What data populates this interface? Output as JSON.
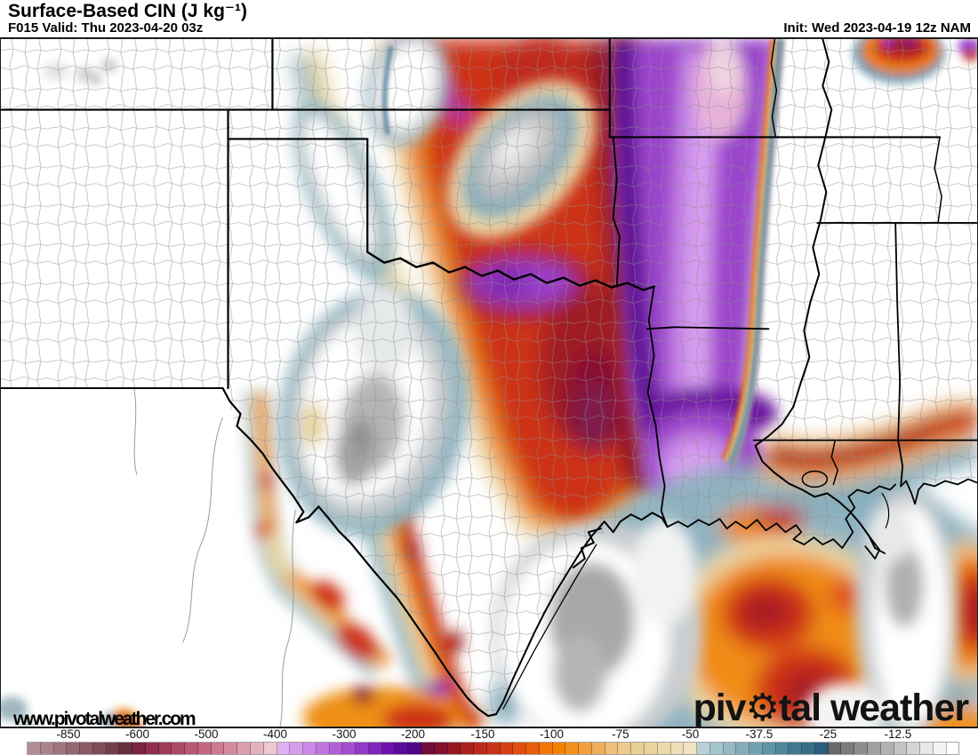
{
  "header": {
    "title": "Surface-Based CIN (J kg⁻¹)",
    "valid": "F015 Valid: Thu 2023-04-20 03z",
    "init": "Init: Wed 2023-04-19 12z NAM"
  },
  "map": {
    "watermark": "www.pivotalweather.com",
    "logo": "piv⚙tal weather",
    "region": "South-central United States (Texas, Oklahoma, Arkansas, Louisiana, Mississippi, Gulf Coast)"
  },
  "colorbar": {
    "parameter": "Surface-Based CIN",
    "unit": "J kg⁻¹",
    "ticks": [
      {
        "label": "-850",
        "pos": 4.4
      },
      {
        "label": "-600",
        "pos": 11.8
      },
      {
        "label": "-500",
        "pos": 19.2
      },
      {
        "label": "-400",
        "pos": 26.6
      },
      {
        "label": "-300",
        "pos": 34.0
      },
      {
        "label": "-200",
        "pos": 41.4
      },
      {
        "label": "-150",
        "pos": 48.9
      },
      {
        "label": "-100",
        "pos": 56.3
      },
      {
        "label": "-75",
        "pos": 63.7
      },
      {
        "label": "-50",
        "pos": 71.2
      },
      {
        "label": "-37.5",
        "pos": 78.6
      },
      {
        "label": "-25",
        "pos": 86.0
      },
      {
        "label": "-12.5",
        "pos": 93.5
      }
    ],
    "cell_colors": [
      "#b48e96",
      "#ab828b",
      "#a1757f",
      "#966873",
      "#8b5a66",
      "#7f4c59",
      "#733e4c",
      "#672f40",
      "#7c2340",
      "#8f2e4c",
      "#9e3b59",
      "#ac4967",
      "#b85875",
      "#c36882",
      "#cc7991",
      "#d48b9f",
      "#dc9ead",
      "#e4b2bd",
      "#edc9d0",
      "#e2aff0",
      "#d79ceb",
      "#cc88e5",
      "#bf74df",
      "#b161d8",
      "#a24ed0",
      "#9239c7",
      "#8026bb",
      "#6d14ac",
      "#5c0a9b",
      "#4f0689",
      "#6f0c3a",
      "#85102d",
      "#981824",
      "#aa211f",
      "#bb2a1b",
      "#c93418",
      "#d54014",
      "#e04e0f",
      "#e85c0a",
      "#f07708",
      "#f28204",
      "#f2901d",
      "#f1a03c",
      "#efb05c",
      "#edc07a",
      "#ecca8c",
      "#e9cf92",
      "#ebd59e",
      "#ecdaab",
      "#eedfb7",
      "#f0e3c1",
      "#b5d0d6",
      "#a4c4cc",
      "#93b8c3",
      "#82acb9",
      "#71a0af",
      "#6093a6",
      "#50879c",
      "#407b92",
      "#356f88",
      "#2d5d7e",
      "#696969",
      "#7b7b7b",
      "#8d8d8d",
      "#9f9f9f",
      "#b1b1b1",
      "#c3c3c3",
      "#d5d5d5",
      "#e7e7e7",
      "#f3f3f3",
      "#ffffff"
    ]
  }
}
